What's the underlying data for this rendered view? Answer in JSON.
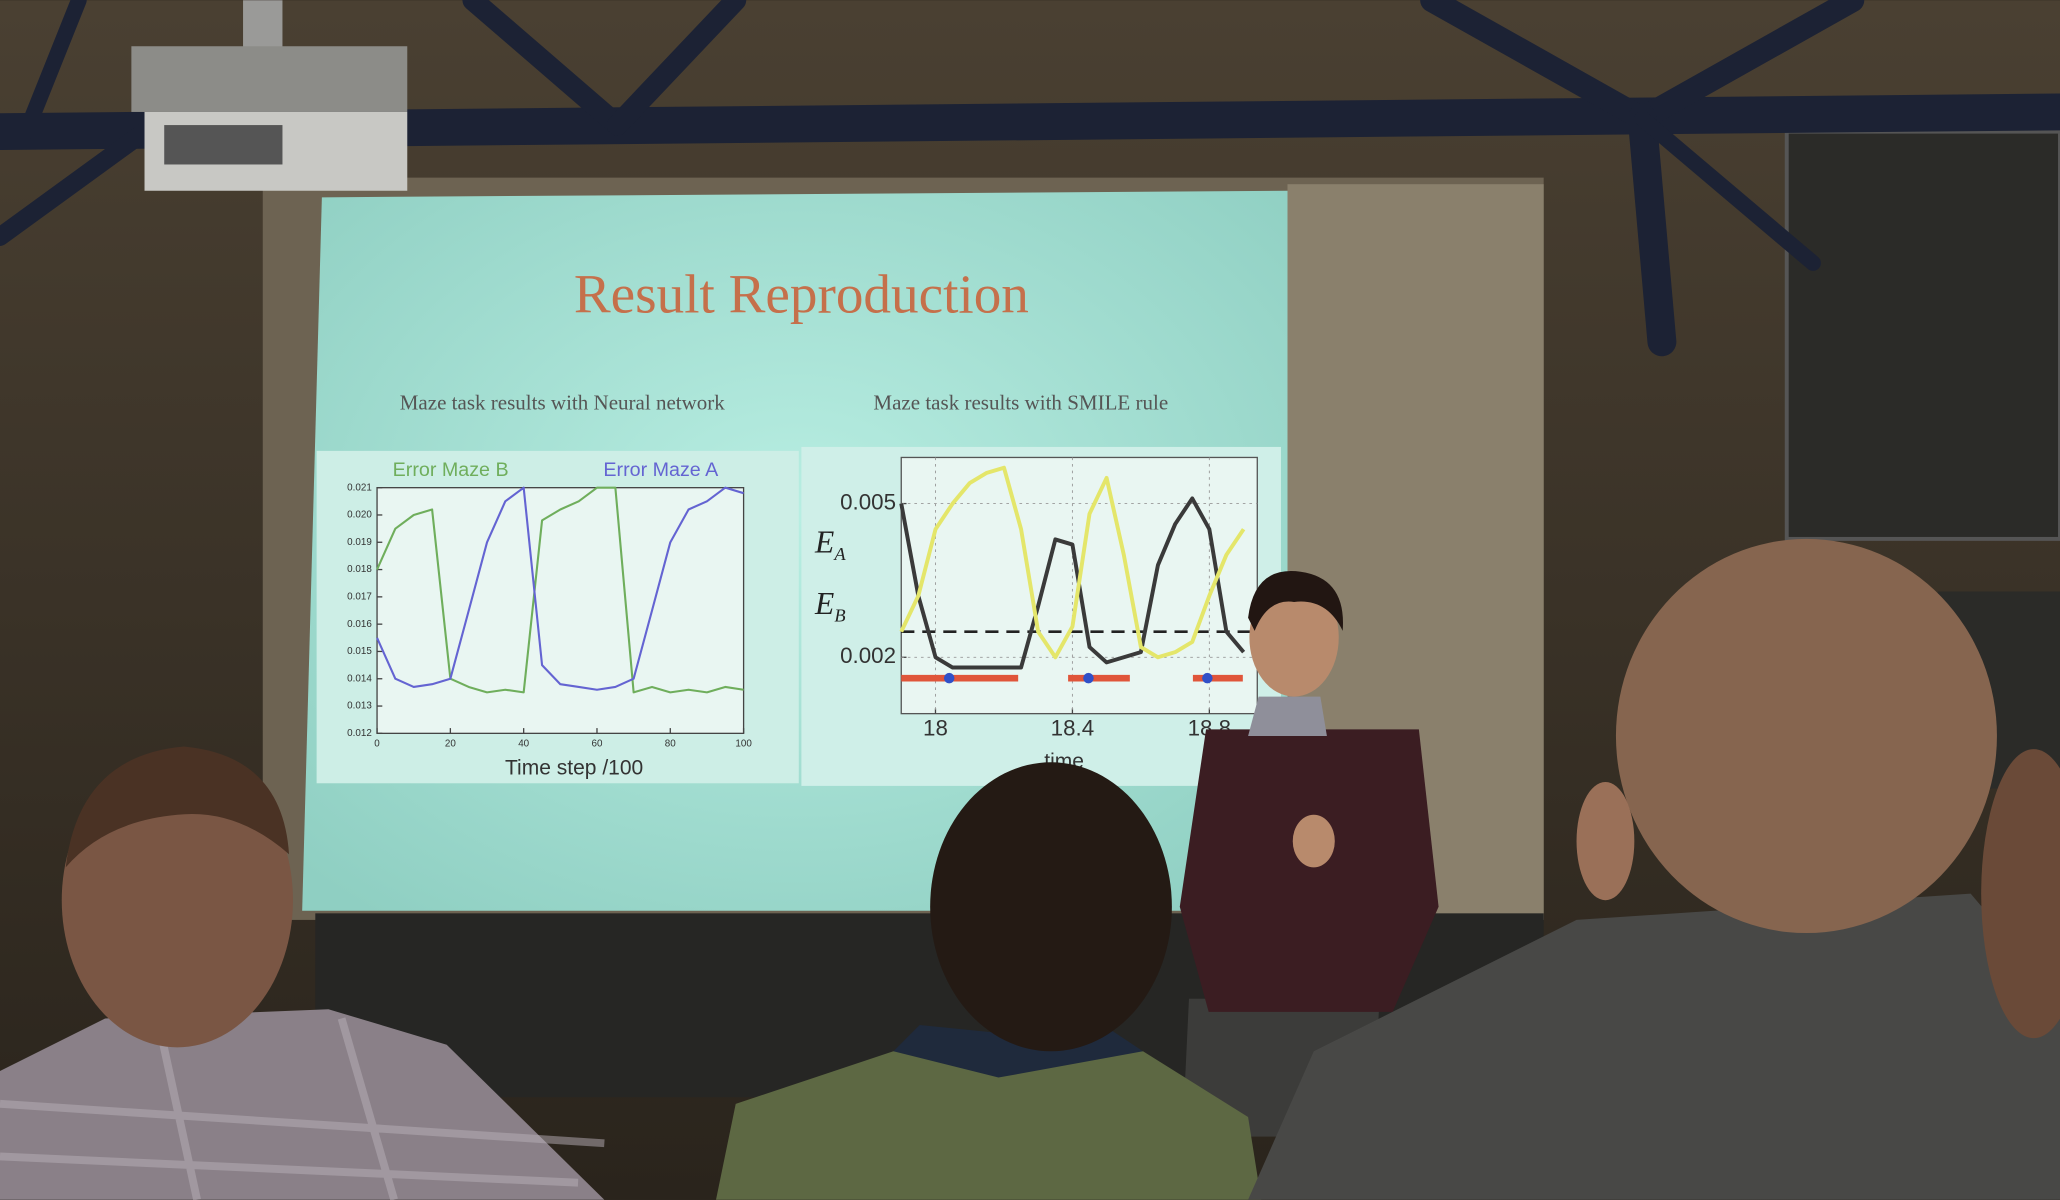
{
  "slide": {
    "title": "Result Reproduction"
  },
  "chart_data": [
    {
      "type": "line",
      "title": "Maze task results with Neural network",
      "x_label": "Time step /100",
      "x": [
        0,
        5,
        10,
        15,
        20,
        25,
        30,
        35,
        40,
        45,
        50,
        55,
        60,
        65,
        70,
        75,
        80,
        85,
        90,
        95,
        100
      ],
      "series": [
        {
          "name": "Error Maze B",
          "color": "#6fae5c",
          "values": [
            0.018,
            0.0195,
            0.02,
            0.0202,
            0.014,
            0.0137,
            0.0135,
            0.0136,
            0.0135,
            0.0198,
            0.0202,
            0.0205,
            0.021,
            0.021,
            0.0135,
            0.0137,
            0.0135,
            0.0136,
            0.0135,
            0.0137,
            0.0136
          ]
        },
        {
          "name": "Error Maze A",
          "color": "#6464d2",
          "values": [
            0.0155,
            0.014,
            0.0137,
            0.0138,
            0.014,
            0.0165,
            0.019,
            0.0205,
            0.021,
            0.0145,
            0.0138,
            0.0137,
            0.0136,
            0.0137,
            0.014,
            0.0165,
            0.019,
            0.0202,
            0.0205,
            0.021,
            0.0208
          ]
        }
      ],
      "xlim": [
        0,
        100
      ],
      "ylim": [
        0.012,
        0.021
      ],
      "xticks": [
        0,
        20,
        40,
        60,
        80,
        100
      ],
      "yticks": [
        0.012,
        0.013,
        0.014,
        0.015,
        0.016,
        0.017,
        0.018,
        0.019,
        {
          "value": 0.02,
          "label": "0.020"
        },
        0.021
      ]
    },
    {
      "type": "line",
      "title": "Maze task results with SMILE rule",
      "x_label": "time",
      "y_label_parts": [
        {
          "symbol": "E",
          "subscript": "A"
        },
        {
          "symbol": "E",
          "subscript": "B"
        }
      ],
      "x": [
        17.9,
        17.95,
        18.0,
        18.05,
        18.1,
        18.15,
        18.2,
        18.25,
        18.3,
        18.35,
        18.4,
        18.45,
        18.5,
        18.55,
        18.6,
        18.65,
        18.7,
        18.75,
        18.8,
        18.85,
        18.9
      ],
      "series": [
        {
          "color": "#3a3a3a",
          "values": [
            0.005,
            0.0032,
            0.002,
            0.0018,
            0.0018,
            0.0018,
            0.0018,
            0.0018,
            0.003,
            0.0043,
            0.0042,
            0.0022,
            0.0019,
            0.002,
            0.0021,
            0.0038,
            0.0046,
            0.0051,
            0.0045,
            0.0025,
            0.0021
          ]
        },
        {
          "color": "#e4e66a",
          "values": [
            0.0025,
            0.0032,
            0.0045,
            0.005,
            0.0054,
            0.0056,
            0.0057,
            0.0045,
            0.0025,
            0.002,
            0.0026,
            0.0048,
            0.0055,
            0.004,
            0.0022,
            0.002,
            0.0021,
            0.0023,
            0.0032,
            0.004,
            0.0045
          ]
        }
      ],
      "threshold": 0.0025,
      "xlim": [
        17.9,
        18.94
      ],
      "ylim": [
        0.0009,
        0.0059
      ],
      "xticks": [
        18,
        18.4,
        18.8
      ],
      "yticks": [
        0.002,
        0.005
      ]
    }
  ]
}
